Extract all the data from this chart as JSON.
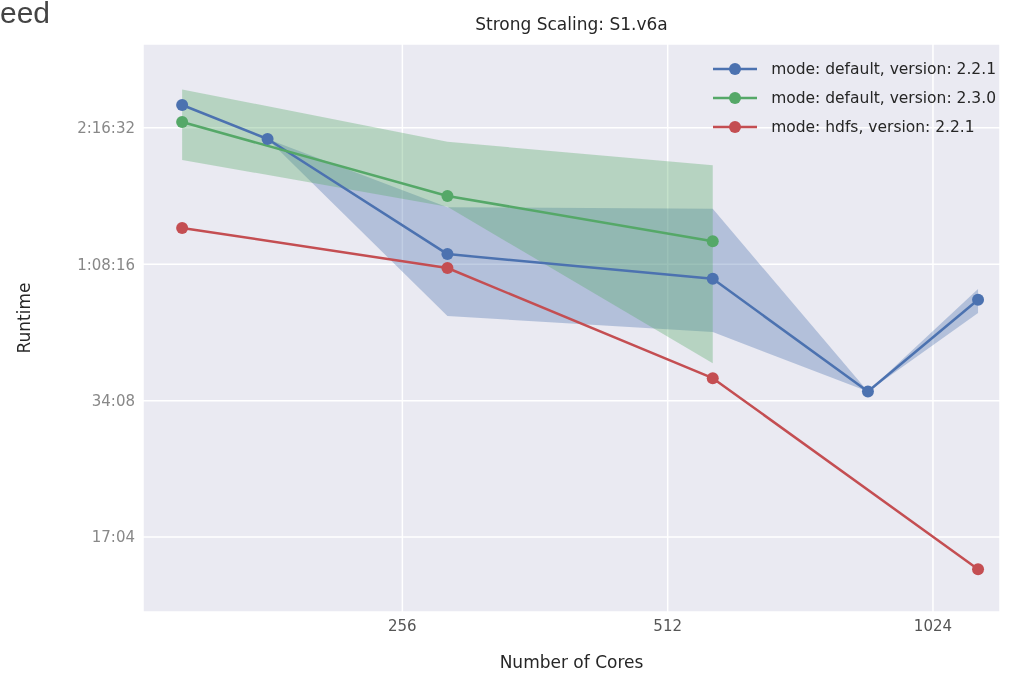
{
  "chart_data": {
    "type": "line",
    "title": "Strong Scaling: S1.v6a",
    "xlabel": "Number of Cores",
    "ylabel": "Runtime",
    "annotations": [
      "eed"
    ],
    "log": "xy",
    "grid": true,
    "legend": "top right",
    "marker": "circle",
    "line_style": "solid",
    "xlim": [
      130,
      1220
    ],
    "xticks": [
      256,
      512,
      1024
    ],
    "ylim": [
      700,
      12534
    ],
    "yticks": [
      {
        "value": 1024,
        "label": "17:04"
      },
      {
        "value": 2048,
        "label": "34:08"
      },
      {
        "value": 4096,
        "label": "1:08:16"
      },
      {
        "value": 8192,
        "label": "2:16:32"
      }
    ],
    "series": [
      {
        "name": "mode: default, version: 2.2.1",
        "color": "#4c72b0",
        "x": [
          144,
          180,
          288,
          576,
          864,
          1152
        ],
        "values": [
          9194,
          7736,
          4311,
          3802,
          2145,
          3418
        ],
        "lower": [
          9194,
          7736,
          3148,
          2902,
          2145,
          3197
        ],
        "upper": [
          9194,
          7736,
          5471,
          5426,
          2145,
          3613
        ]
      },
      {
        "name": "mode: default, version: 2.3.0",
        "color": "#55a868",
        "x": [
          144,
          288,
          576
        ],
        "values": [
          8432,
          5792,
          4604
        ],
        "lower": [
          6957,
          5484,
          2477
        ],
        "upper": [
          9953,
          7627,
          6771
        ]
      },
      {
        "name": "mode: hdfs, version: 2.2.1",
        "color": "#c44e52",
        "x": [
          144,
          288,
          576,
          1152
        ],
        "values": [
          4924,
          4017,
          2296,
          870
        ]
      }
    ]
  }
}
